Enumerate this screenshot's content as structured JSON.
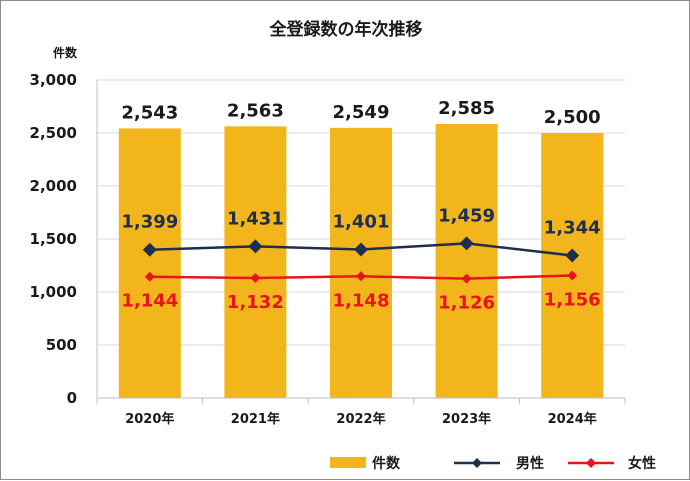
{
  "chart_data": {
    "type": "bar",
    "title": "全登録数の年次推移",
    "ylabel": "件数",
    "ylim": [
      0,
      3000
    ],
    "yticks": [
      0,
      500,
      1000,
      1500,
      2000,
      2500,
      3000
    ],
    "ytick_labels": [
      "0",
      "500",
      "1,000",
      "1,500",
      "2,000",
      "2,500",
      "3,000"
    ],
    "categories": [
      "2020年",
      "2021年",
      "2022年",
      "2023年",
      "2024年"
    ],
    "grid": true,
    "legend_position": "bottom-right",
    "series": [
      {
        "name": "件数",
        "kind": "bar",
        "color": "#f2b61c",
        "values": [
          2543,
          2563,
          2549,
          2585,
          2500
        ],
        "labels": [
          "2,543",
          "2,563",
          "2,549",
          "2,585",
          "2,500"
        ]
      },
      {
        "name": "男性",
        "kind": "line",
        "marker": "diamond",
        "color": "#1f2d4e",
        "values": [
          1399,
          1431,
          1401,
          1459,
          1344
        ],
        "labels": [
          "1,399",
          "1,431",
          "1,401",
          "1,459",
          "1,344"
        ]
      },
      {
        "name": "女性",
        "kind": "line",
        "marker": "diamond",
        "color": "#e8141b",
        "values": [
          1144,
          1132,
          1148,
          1126,
          1156
        ],
        "labels": [
          "1,144",
          "1,132",
          "1,148",
          "1,126",
          "1,156"
        ]
      }
    ]
  }
}
